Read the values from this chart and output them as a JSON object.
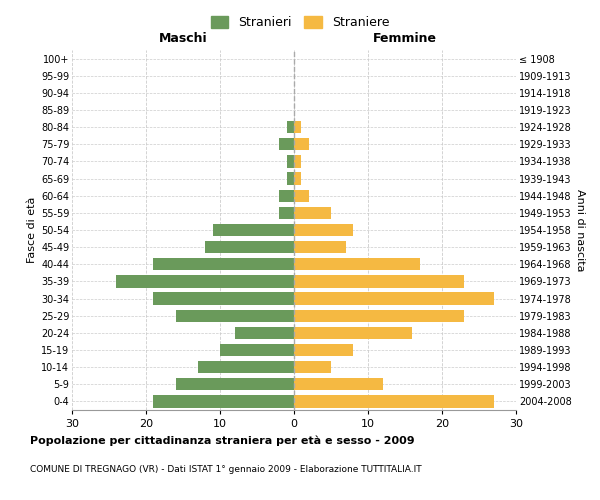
{
  "age_groups": [
    "0-4",
    "5-9",
    "10-14",
    "15-19",
    "20-24",
    "25-29",
    "30-34",
    "35-39",
    "40-44",
    "45-49",
    "50-54",
    "55-59",
    "60-64",
    "65-69",
    "70-74",
    "75-79",
    "80-84",
    "85-89",
    "90-94",
    "95-99",
    "100+"
  ],
  "birth_years": [
    "2004-2008",
    "1999-2003",
    "1994-1998",
    "1989-1993",
    "1984-1988",
    "1979-1983",
    "1974-1978",
    "1969-1973",
    "1964-1968",
    "1959-1963",
    "1954-1958",
    "1949-1953",
    "1944-1948",
    "1939-1943",
    "1934-1938",
    "1929-1933",
    "1924-1928",
    "1919-1923",
    "1914-1918",
    "1909-1913",
    "≤ 1908"
  ],
  "maschi": [
    19,
    16,
    13,
    10,
    8,
    16,
    19,
    24,
    19,
    12,
    11,
    2,
    2,
    1,
    1,
    2,
    1,
    0,
    0,
    0,
    0
  ],
  "femmine": [
    27,
    12,
    5,
    8,
    16,
    23,
    27,
    23,
    17,
    7,
    8,
    5,
    2,
    1,
    1,
    2,
    1,
    0,
    0,
    0,
    0
  ],
  "maschi_color": "#6a9a5b",
  "femmine_color": "#f5b942",
  "bar_height": 0.72,
  "xlim": [
    -30,
    30
  ],
  "xticks": [
    -30,
    -20,
    -10,
    0,
    10,
    20,
    30
  ],
  "xticklabels": [
    "30",
    "20",
    "10",
    "0",
    "10",
    "20",
    "30"
  ],
  "title": "Popolazione per cittadinanza straniera per età e sesso - 2009",
  "subtitle": "COMUNE DI TREGNAGO (VR) - Dati ISTAT 1° gennaio 2009 - Elaborazione TUTTITALIA.IT",
  "ylabel_left": "Fasce di età",
  "ylabel_right": "Anni di nascita",
  "legend_stranieri": "Stranieri",
  "legend_straniere": "Straniere",
  "maschi_label": "Maschi",
  "femmine_label": "Femmine",
  "bg_color": "#ffffff",
  "grid_color": "#cccccc",
  "centerline_color": "#aaaaaa"
}
